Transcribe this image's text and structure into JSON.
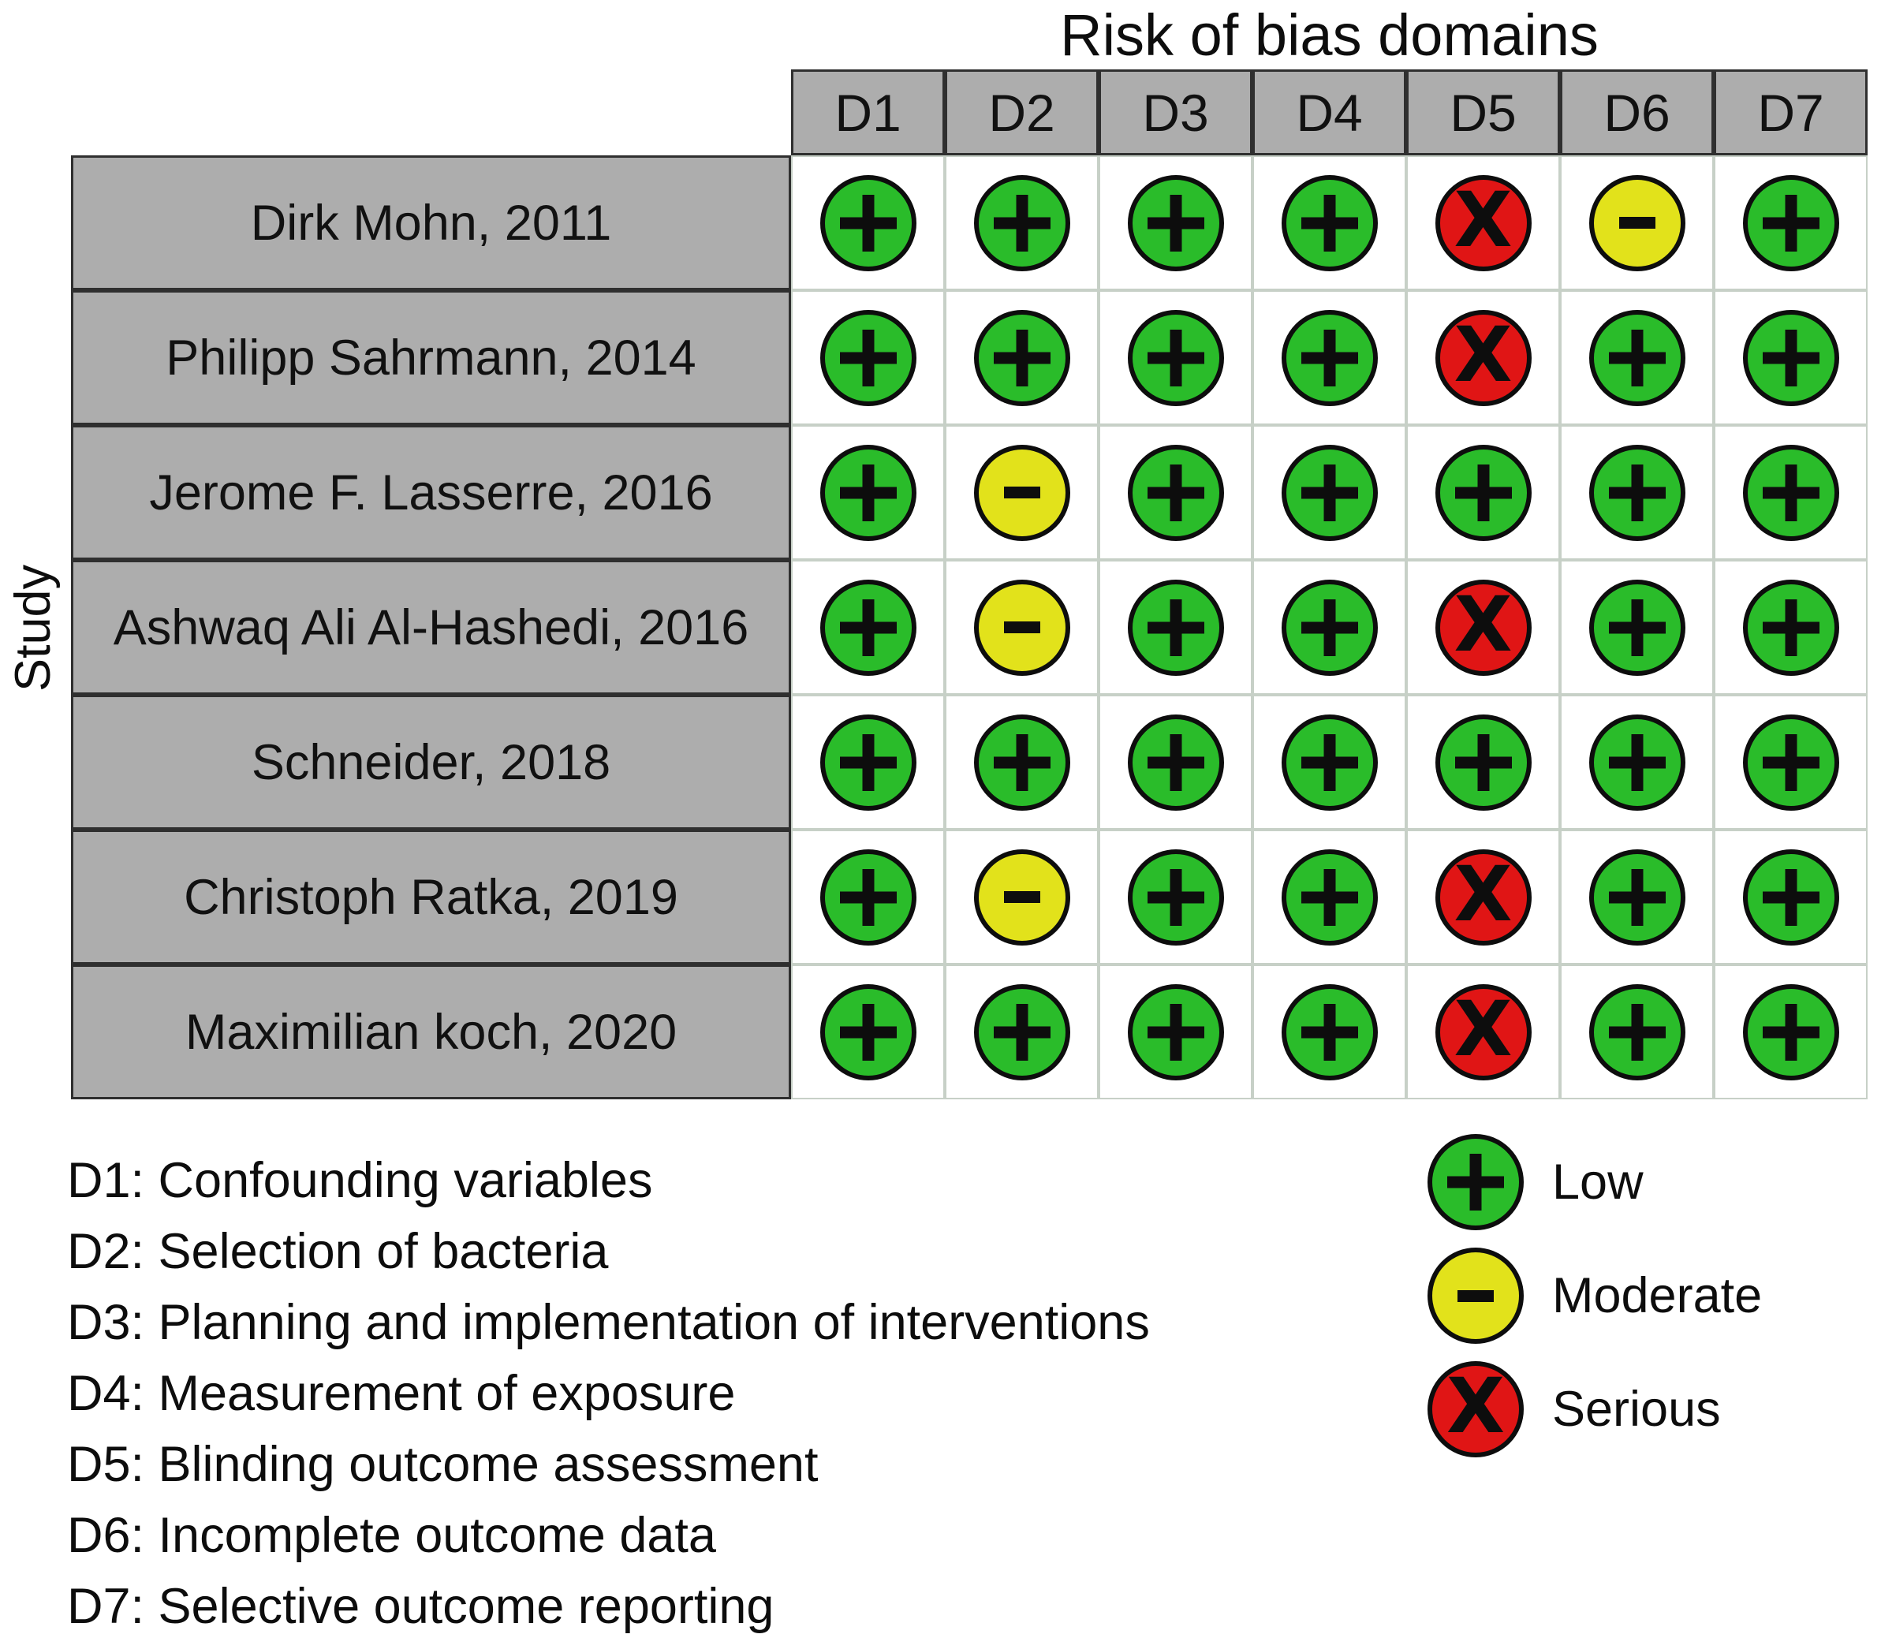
{
  "chart_data": {
    "type": "table",
    "title": "Risk of bias domains",
    "row_axis_label": "Study",
    "columns": [
      "D1",
      "D2",
      "D3",
      "D4",
      "D5",
      "D6",
      "D7"
    ],
    "rows": [
      {
        "study": "Dirk Mohn, 2011",
        "ratings": [
          "low",
          "low",
          "low",
          "low",
          "serious",
          "moderate",
          "low"
        ]
      },
      {
        "study": "Philipp Sahrmann, 2014",
        "ratings": [
          "low",
          "low",
          "low",
          "low",
          "serious",
          "low",
          "low"
        ]
      },
      {
        "study": "Jerome F. Lasserre, 2016",
        "ratings": [
          "low",
          "moderate",
          "low",
          "low",
          "low",
          "low",
          "low"
        ]
      },
      {
        "study": "Ashwaq Ali Al-Hashedi, 2016",
        "ratings": [
          "low",
          "moderate",
          "low",
          "low",
          "serious",
          "low",
          "low"
        ]
      },
      {
        "study": "Schneider, 2018",
        "ratings": [
          "low",
          "low",
          "low",
          "low",
          "low",
          "low",
          "low"
        ]
      },
      {
        "study": "Christoph Ratka, 2019",
        "ratings": [
          "low",
          "moderate",
          "low",
          "low",
          "serious",
          "low",
          "low"
        ]
      },
      {
        "study": "Maximilian koch, 2020",
        "ratings": [
          "low",
          "low",
          "low",
          "low",
          "serious",
          "low",
          "low"
        ]
      }
    ],
    "legend": [
      {
        "label": "Low",
        "symbol": "+",
        "level": "low"
      },
      {
        "label": "Moderate",
        "symbol": "-",
        "level": "moderate"
      },
      {
        "label": "Serious",
        "symbol": "X",
        "level": "serious"
      }
    ],
    "domain_definitions": [
      "D1: Confounding variables",
      "D2: Selection of bacteria",
      "D3: Planning and implementation of interventions",
      "D4: Measurement of exposure",
      "D5: Blinding outcome assessment",
      "D6: Incomplete outcome data",
      "D7: Selective outcome reporting"
    ],
    "layout": {
      "grid": "on",
      "legend_position": "bottom-right"
    }
  },
  "colors": {
    "low": "#2abc2a",
    "moderate": "#e2e21b",
    "serious": "#e01515",
    "header_gray": "#adadad",
    "grid_dark": "#2f2f2f",
    "grid_light": "#c7d0c7",
    "symbol_black": "#0d0d0d"
  }
}
